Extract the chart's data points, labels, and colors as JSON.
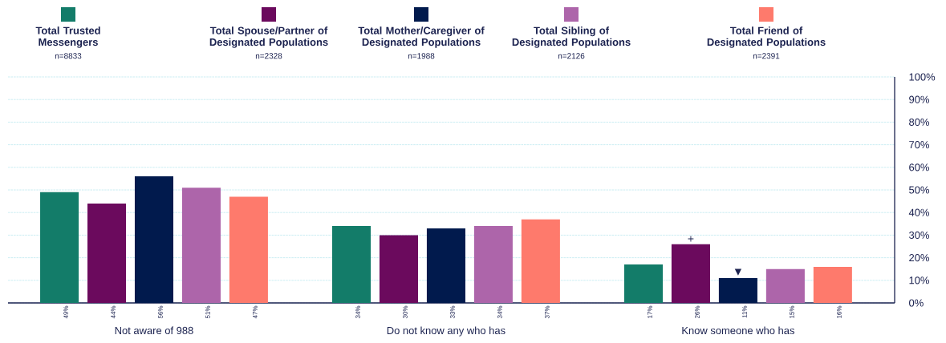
{
  "chart_data": {
    "type": "bar",
    "categories": [
      "Not aware of 988",
      "Do not know any who has",
      "Know someone who has"
    ],
    "series": [
      {
        "name": "Total Trusted Messengers",
        "color": "#137c69",
        "values": [
          49,
          34,
          17
        ],
        "value_labels": [
          "49%",
          "34%",
          "17%"
        ]
      },
      {
        "name": "Total Spouse/Partner of Designated Populations",
        "color": "#6b0a5d",
        "values": [
          44,
          30,
          26
        ],
        "value_labels": [
          "44%",
          "30%",
          "26%"
        ]
      },
      {
        "name": "Total Mother/Caregiver of Designated Populations",
        "color": "#011a4d",
        "values": [
          56,
          33,
          11
        ],
        "value_labels": [
          "56%",
          "33%",
          "11%"
        ]
      },
      {
        "name": "Total Sibling of Designated Populations",
        "color": "#ad65aa",
        "values": [
          51,
          34,
          15
        ],
        "value_labels": [
          "51%",
          "34%",
          "15%"
        ]
      },
      {
        "name": "Total Friend of Designated Populations",
        "color": "#fe7a6c",
        "values": [
          47,
          37,
          16
        ],
        "value_labels": [
          "47%",
          "37%",
          "16%"
        ]
      }
    ],
    "ylim": [
      0,
      100
    ],
    "yticks": [
      {
        "value": 0,
        "label": "0%"
      },
      {
        "value": 10,
        "label": "10%"
      },
      {
        "value": 20,
        "label": "20%"
      },
      {
        "value": 30,
        "label": "30%"
      },
      {
        "value": 40,
        "label": "40%"
      },
      {
        "value": 50,
        "label": "50%"
      },
      {
        "value": 60,
        "label": "60%"
      },
      {
        "value": 70,
        "label": "70%"
      },
      {
        "value": 80,
        "label": "80%"
      },
      {
        "value": 90,
        "label": "90%"
      },
      {
        "value": 100,
        "label": "100%"
      }
    ],
    "grid": "y",
    "legend": "top",
    "annotations": [
      "n=8833",
      "n=2328",
      "n=1988",
      "n=2126",
      "n=2391",
      "+",
      "▼"
    ]
  }
}
